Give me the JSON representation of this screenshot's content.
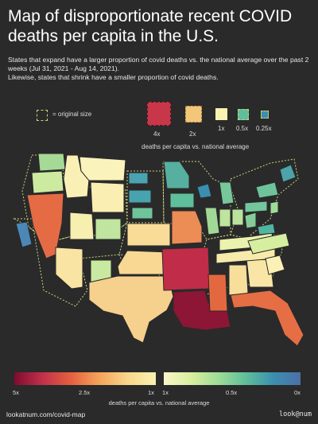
{
  "title": "Map of disproportionate recent COVID deaths per capita in the U.S.",
  "subtitle_lines": [
    "States that expand have a larger proportion of covid deaths vs. the national average over the past 2 weeks (Jul 31, 2021 - Aug 14, 2021).",
    "Likewise, states that shrink have a smaller proportion of covid deaths."
  ],
  "legend": {
    "original_size_label": "= original size",
    "items": [
      {
        "label": "4x",
        "color": "#c8364a"
      },
      {
        "label": "2x",
        "color": "#f3c77a"
      },
      {
        "label": "1x",
        "color": "#f8f2b3"
      },
      {
        "label": "0.5x",
        "color": "#5fbf9a"
      },
      {
        "label": "0.25x",
        "color": "#3a8fb0"
      }
    ],
    "caption": "deaths per capita vs. national average"
  },
  "colorbar": {
    "ticks": [
      "5x",
      "2.5x",
      "1x",
      "1x",
      "0.5x",
      "0x"
    ],
    "caption": "deaths per capita vs. national average"
  },
  "map_states": [
    {
      "name": "Washington",
      "ratio": "0.6x",
      "color": "#a6d996"
    },
    {
      "name": "Oregon",
      "ratio": "0.8x",
      "color": "#cdeba0"
    },
    {
      "name": "California",
      "ratio": "0.4x",
      "color": "#4b88b8"
    },
    {
      "name": "Nevada",
      "ratio": "2.6x",
      "color": "#e56b45"
    },
    {
      "name": "Idaho",
      "ratio": "1.2x",
      "color": "#faf0b6"
    },
    {
      "name": "Montana",
      "ratio": "1.1x",
      "color": "#fbf3bc"
    },
    {
      "name": "Wyoming",
      "ratio": "1.2x",
      "color": "#faeeb2"
    },
    {
      "name": "Utah",
      "ratio": "1.1x",
      "color": "#f6efb0"
    },
    {
      "name": "Arizona",
      "ratio": "1.3x",
      "color": "#f9e4a4"
    },
    {
      "name": "Colorado",
      "ratio": "0.7x",
      "color": "#bfe59e"
    },
    {
      "name": "New Mexico",
      "ratio": "0.8x",
      "color": "#c9e9a0"
    },
    {
      "name": "North Dakota",
      "ratio": "0.3x",
      "color": "#4aa3b0"
    },
    {
      "name": "South Dakota",
      "ratio": "0.3x",
      "color": "#47a4ae"
    },
    {
      "name": "Nebraska",
      "ratio": "0.5x",
      "color": "#6fc59b"
    },
    {
      "name": "Kansas",
      "ratio": "1.4x",
      "color": "#f8dc98"
    },
    {
      "name": "Oklahoma",
      "ratio": "1.4x",
      "color": "#f8d893"
    },
    {
      "name": "Texas",
      "ratio": "1.5x",
      "color": "#f6d08d"
    },
    {
      "name": "Minnesota",
      "ratio": "0.4x",
      "color": "#57b09f"
    },
    {
      "name": "Iowa",
      "ratio": "0.4x",
      "color": "#5fbf9a"
    },
    {
      "name": "Missouri",
      "ratio": "2.2x",
      "color": "#eb8d55"
    },
    {
      "name": "Arkansas",
      "ratio": "4.0x",
      "color": "#c12c49"
    },
    {
      "name": "Louisiana",
      "ratio": "4.8x",
      "color": "#8d1536"
    },
    {
      "name": "Mississippi",
      "ratio": "2.4x",
      "color": "#e4683f"
    },
    {
      "name": "Alabama",
      "ratio": "1.3x",
      "color": "#f7de9b"
    },
    {
      "name": "Florida",
      "ratio": "2.6x",
      "color": "#e66e44"
    },
    {
      "name": "Georgia",
      "ratio": "1.2x",
      "color": "#f9e6a6"
    },
    {
      "name": "Tennessee",
      "ratio": "1.1x",
      "color": "#f8eaab"
    },
    {
      "name": "Kentucky",
      "ratio": "0.9x",
      "color": "#eaf3ae"
    },
    {
      "name": "Wisconsin",
      "ratio": "0.4x",
      "color": "#3a8fb0"
    },
    {
      "name": "Illinois",
      "ratio": "0.6x",
      "color": "#a1d897"
    },
    {
      "name": "Michigan",
      "ratio": "0.5x",
      "color": "#77c79b"
    },
    {
      "name": "Indiana",
      "ratio": "0.7x",
      "color": "#bde59d"
    },
    {
      "name": "Ohio",
      "ratio": "0.7x",
      "color": "#b9e29c"
    },
    {
      "name": "Pennsylvania",
      "ratio": "0.5x",
      "color": "#74c79b"
    },
    {
      "name": "New York",
      "ratio": "0.5x",
      "color": "#6ec39b"
    },
    {
      "name": "Virginia",
      "ratio": "0.4x",
      "color": "#52b4a2"
    },
    {
      "name": "North Carolina",
      "ratio": "0.8x",
      "color": "#d6ee9f"
    },
    {
      "name": "South Carolina",
      "ratio": "1.1x",
      "color": "#fbf0b6"
    },
    {
      "name": "West Virginia",
      "ratio": "0.5x",
      "color": "#84cd99"
    },
    {
      "name": "New England",
      "ratio": "0.4x",
      "color": "#4ca3aa"
    }
  ],
  "footer": {
    "left": "lookatnum.com/covid-map",
    "right": "look@num"
  }
}
